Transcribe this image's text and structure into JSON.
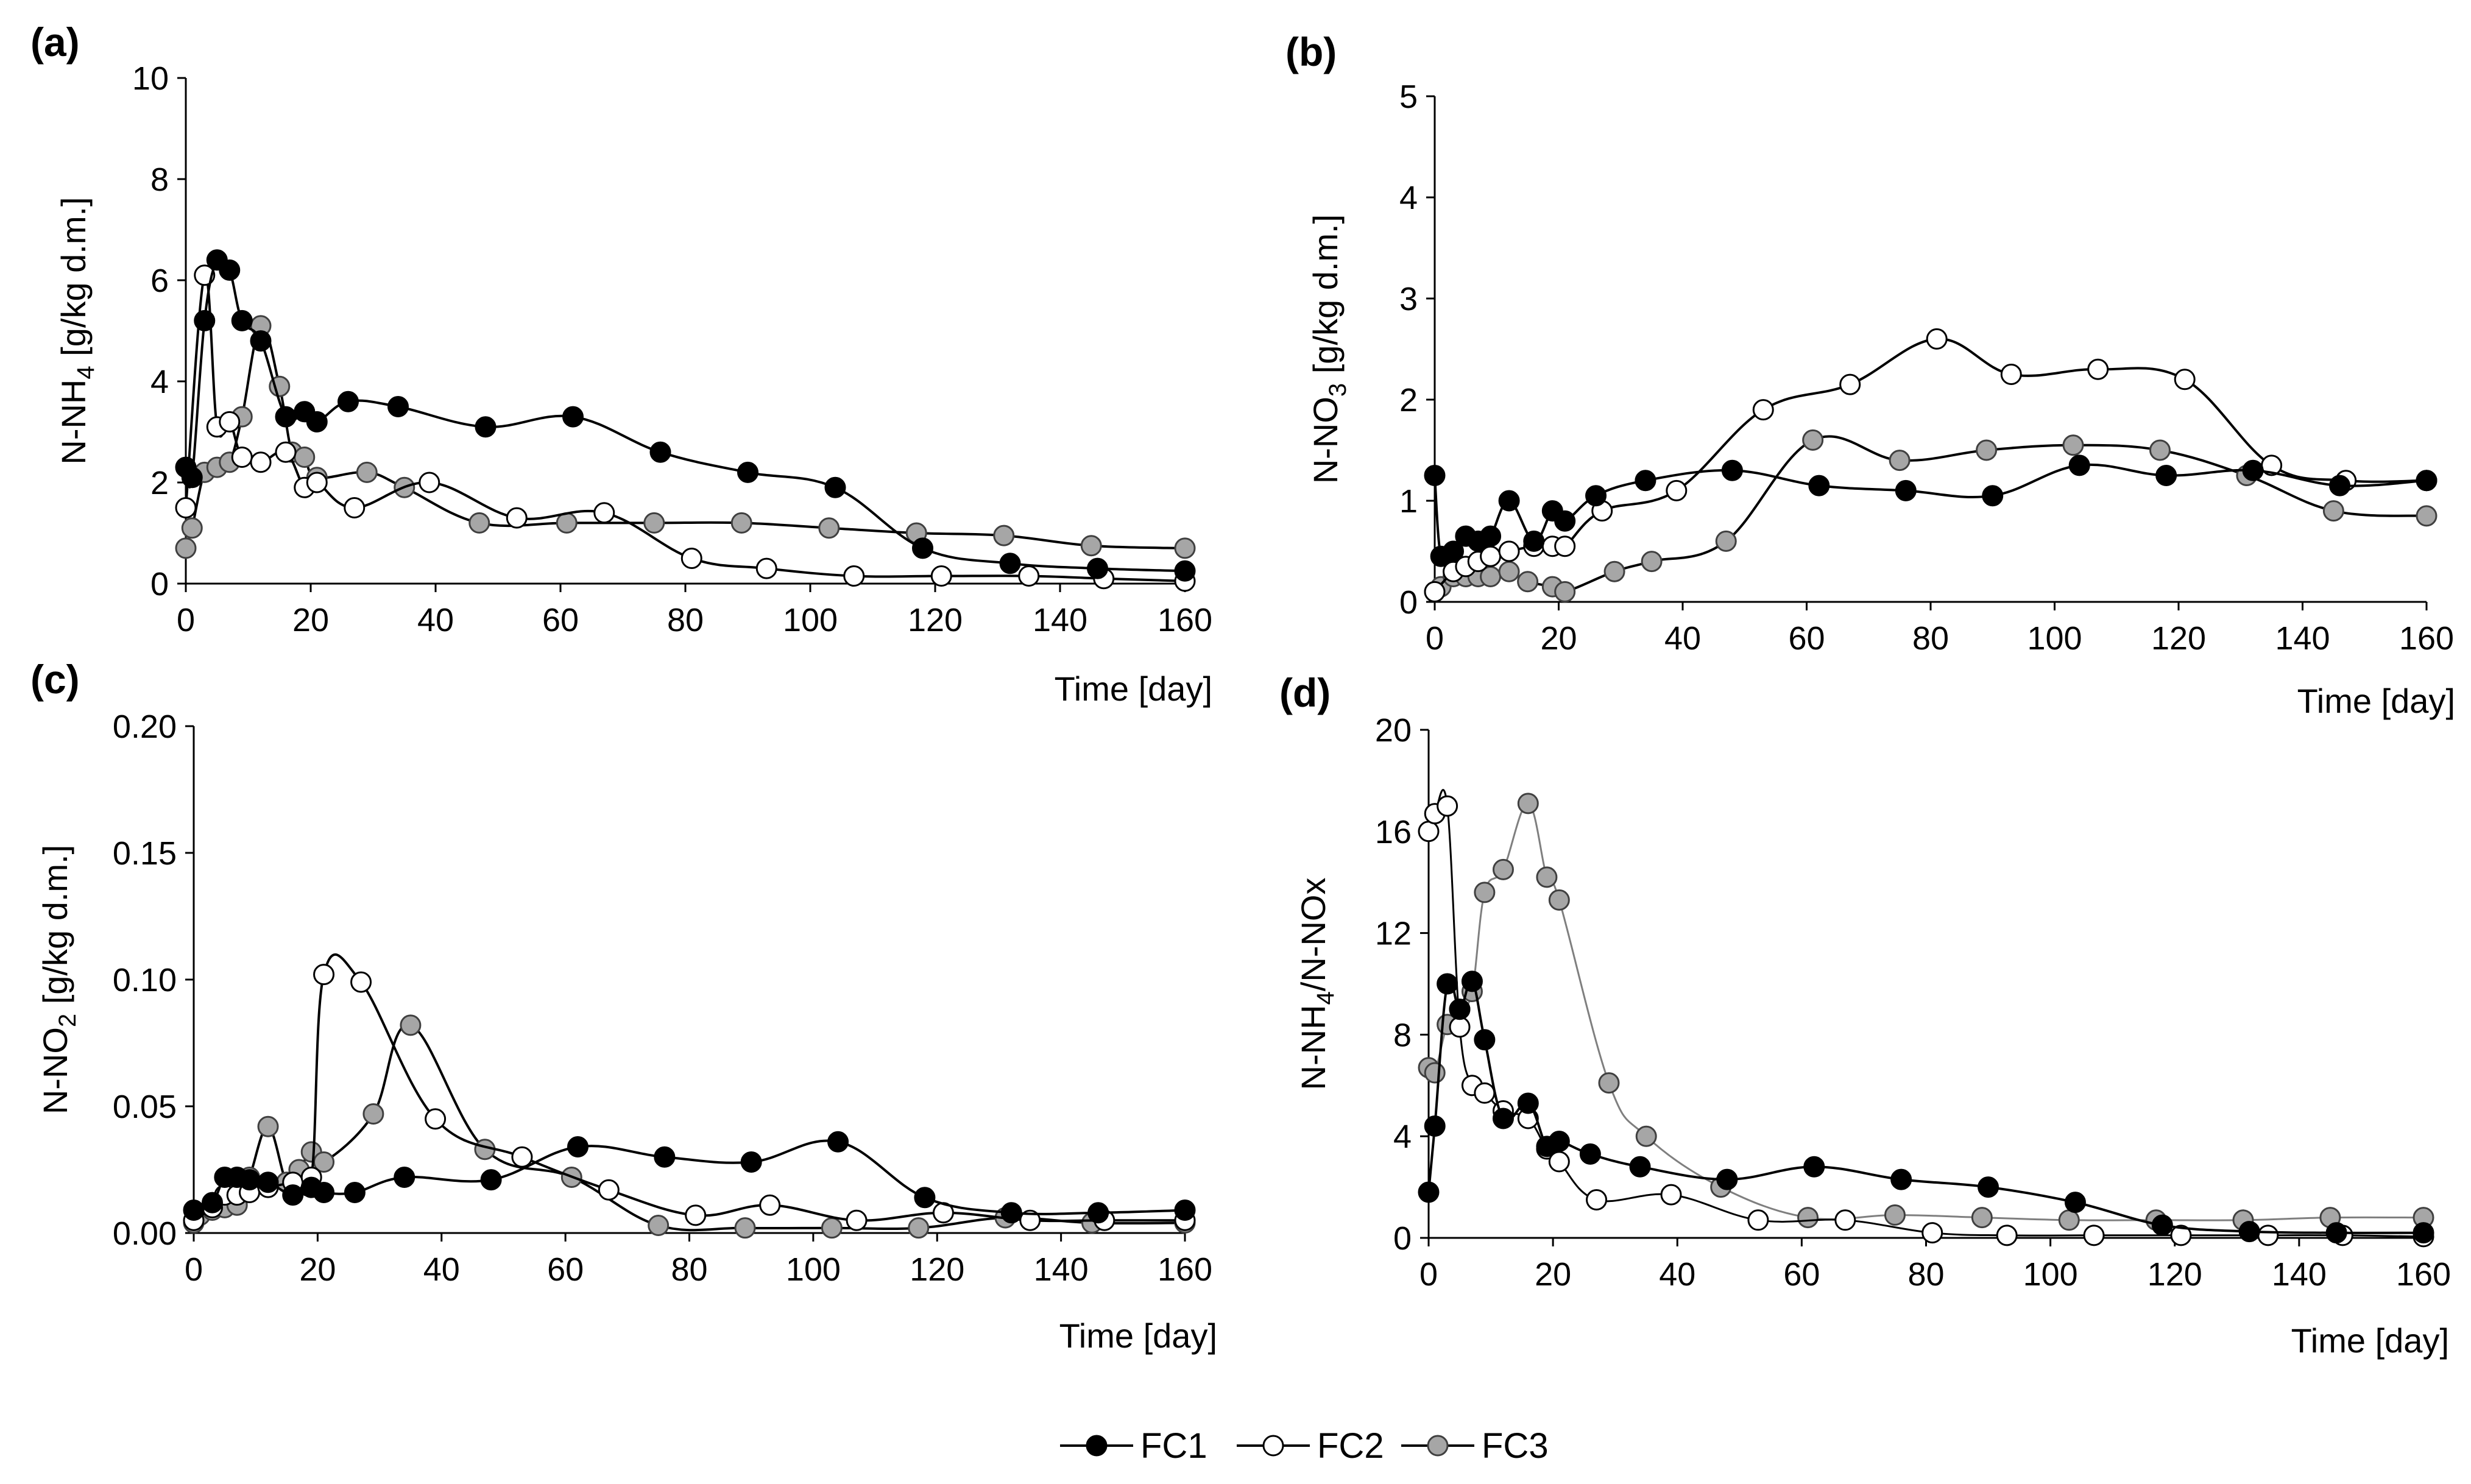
{
  "chart_data": [
    {
      "type": "line",
      "panel_label": "(a)",
      "ylabel_main": "N-NH",
      "ylabel_sub": "4",
      "ylabel_tail": " [g/kg d.m.]",
      "xlabel": "Time [day]",
      "xlim": [
        0,
        160
      ],
      "ylim": [
        0,
        10
      ],
      "x_ticks": [
        "0",
        "20",
        "40",
        "60",
        "80",
        "100",
        "120",
        "140",
        "160"
      ],
      "y_ticks": [
        "0",
        "2",
        "4",
        "6",
        "8",
        "10"
      ],
      "series": [
        {
          "name": "FC1",
          "x": [
            0,
            1,
            3,
            5,
            7,
            9,
            12,
            16,
            19,
            21,
            26,
            34,
            48,
            62,
            76,
            90,
            104,
            118,
            132,
            146,
            160
          ],
          "y": [
            2.3,
            2.1,
            5.2,
            6.4,
            6.2,
            5.2,
            4.8,
            3.3,
            3.4,
            3.2,
            3.6,
            3.5,
            3.1,
            3.3,
            2.6,
            2.2,
            1.9,
            0.7,
            0.4,
            0.3,
            0.25
          ]
        },
        {
          "name": "FC2",
          "x": [
            0,
            3,
            5,
            7,
            9,
            12,
            16,
            19,
            21,
            27,
            39,
            53,
            67,
            81,
            93,
            107,
            121,
            135,
            147,
            160
          ],
          "y": [
            1.5,
            6.1,
            3.1,
            3.2,
            2.5,
            2.4,
            2.6,
            1.9,
            2.0,
            1.5,
            2.0,
            1.3,
            1.4,
            0.5,
            0.3,
            0.15,
            0.15,
            0.15,
            0.1,
            0.05
          ]
        },
        {
          "name": "FC3",
          "x": [
            0,
            1,
            3,
            5,
            7,
            9,
            12,
            15,
            17,
            19,
            21,
            29,
            35,
            47,
            61,
            75,
            89,
            103,
            117,
            131,
            145,
            160
          ],
          "y": [
            0.7,
            1.1,
            2.2,
            2.3,
            2.4,
            3.3,
            5.1,
            3.9,
            2.6,
            2.5,
            2.1,
            2.2,
            1.9,
            1.2,
            1.2,
            1.2,
            1.2,
            1.1,
            1.0,
            0.95,
            0.75,
            0.7
          ]
        }
      ]
    },
    {
      "type": "line",
      "panel_label": "(b)",
      "ylabel_main": "N-NO",
      "ylabel_sub": "3",
      "ylabel_tail": " [g/kg d.m.]",
      "xlabel": "Time [day]",
      "xlim": [
        0,
        160
      ],
      "ylim": [
        0,
        5
      ],
      "x_ticks": [
        "0",
        "20",
        "40",
        "60",
        "80",
        "100",
        "120",
        "140",
        "160"
      ],
      "y_ticks": [
        "0",
        "1",
        "2",
        "3",
        "4",
        "5"
      ],
      "series": [
        {
          "name": "FC1",
          "x": [
            0,
            1,
            3,
            5,
            7,
            9,
            12,
            16,
            19,
            21,
            26,
            34,
            48,
            62,
            76,
            90,
            104,
            118,
            132,
            146,
            160
          ],
          "y": [
            1.25,
            0.45,
            0.5,
            0.65,
            0.6,
            0.65,
            1.0,
            0.6,
            0.9,
            0.8,
            1.05,
            1.2,
            1.3,
            1.15,
            1.1,
            1.05,
            1.35,
            1.25,
            1.3,
            1.15,
            1.2
          ]
        },
        {
          "name": "FC2",
          "x": [
            0,
            3,
            5,
            7,
            9,
            12,
            16,
            19,
            21,
            27,
            39,
            53,
            67,
            81,
            93,
            107,
            121,
            135,
            147,
            160
          ],
          "y": [
            0.1,
            0.3,
            0.35,
            0.4,
            0.45,
            0.5,
            0.55,
            0.55,
            0.55,
            0.9,
            1.1,
            1.9,
            2.15,
            2.6,
            2.25,
            2.3,
            2.2,
            1.35,
            1.2,
            1.2
          ]
        },
        {
          "name": "FC3",
          "x": [
            0,
            1,
            3,
            5,
            7,
            9,
            12,
            15,
            19,
            21,
            29,
            35,
            47,
            61,
            75,
            89,
            103,
            117,
            131,
            145,
            160
          ],
          "y": [
            0.1,
            0.15,
            0.25,
            0.25,
            0.25,
            0.25,
            0.3,
            0.2,
            0.15,
            0.1,
            0.3,
            0.4,
            0.6,
            1.6,
            1.4,
            1.5,
            1.55,
            1.5,
            1.25,
            0.9,
            0.85
          ]
        }
      ]
    },
    {
      "type": "line",
      "panel_label": "(c)",
      "ylabel_main": "N-NO",
      "ylabel_sub": "2",
      "ylabel_tail": " [g/kg d.m.]",
      "xlabel": "Time [day]",
      "xlim": [
        0,
        160
      ],
      "ylim": [
        0,
        0.2
      ],
      "x_ticks": [
        "0",
        "20",
        "40",
        "60",
        "80",
        "100",
        "120",
        "140",
        "160"
      ],
      "y_ticks": [
        "0.00",
        "0.05",
        "0.10",
        "0.15",
        "0.20"
      ],
      "series": [
        {
          "name": "FC1",
          "x": [
            0,
            3,
            5,
            7,
            9,
            12,
            16,
            19,
            21,
            26,
            34,
            48,
            62,
            76,
            90,
            104,
            118,
            132,
            146,
            160
          ],
          "y": [
            0.009,
            0.012,
            0.022,
            0.022,
            0.021,
            0.02,
            0.015,
            0.018,
            0.016,
            0.016,
            0.022,
            0.021,
            0.034,
            0.03,
            0.028,
            0.036,
            0.014,
            0.008,
            0.008,
            0.009
          ]
        },
        {
          "name": "FC2",
          "x": [
            0,
            3,
            5,
            7,
            9,
            12,
            16,
            19,
            21,
            27,
            39,
            53,
            67,
            81,
            93,
            107,
            121,
            135,
            147,
            160
          ],
          "y": [
            0.005,
            0.01,
            0.015,
            0.015,
            0.016,
            0.018,
            0.02,
            0.022,
            0.102,
            0.099,
            0.045,
            0.03,
            0.017,
            0.007,
            0.011,
            0.005,
            0.008,
            0.005,
            0.005,
            0.005
          ]
        },
        {
          "name": "FC3",
          "x": [
            0,
            1,
            3,
            5,
            7,
            9,
            12,
            15,
            17,
            19,
            21,
            29,
            35,
            47,
            61,
            75,
            89,
            103,
            117,
            131,
            145,
            160
          ],
          "y": [
            0.004,
            0.007,
            0.009,
            0.01,
            0.011,
            0.022,
            0.042,
            0.02,
            0.025,
            0.032,
            0.028,
            0.047,
            0.082,
            0.033,
            0.022,
            0.003,
            0.002,
            0.002,
            0.002,
            0.006,
            0.004,
            0.004
          ]
        }
      ]
    },
    {
      "type": "line",
      "panel_label": "(d)",
      "ylabel_main": "N-NH",
      "ylabel_sub": "4",
      "ylabel_tail": "/N-NOx",
      "xlabel": "Time [day]",
      "xlim": [
        0,
        160
      ],
      "ylim": [
        0,
        20
      ],
      "x_ticks": [
        "0",
        "20",
        "40",
        "60",
        "80",
        "100",
        "120",
        "140",
        "160"
      ],
      "y_ticks": [
        "0",
        "4",
        "8",
        "12",
        "16",
        "20"
      ],
      "series": [
        {
          "name": "FC1",
          "x": [
            0,
            1,
            3,
            5,
            7,
            9,
            12,
            16,
            19,
            21,
            26,
            34,
            48,
            62,
            76,
            90,
            104,
            118,
            132,
            146,
            160
          ],
          "y": [
            1.8,
            4.4,
            10.0,
            9.0,
            10.1,
            7.8,
            4.7,
            5.3,
            3.6,
            3.8,
            3.3,
            2.8,
            2.3,
            2.8,
            2.3,
            2.0,
            1.4,
            0.5,
            0.25,
            0.2,
            0.2
          ]
        },
        {
          "name": "FC2",
          "x": [
            0,
            1,
            3,
            5,
            7,
            9,
            12,
            16,
            19,
            21,
            27,
            39,
            53,
            67,
            81,
            93,
            107,
            121,
            135,
            147,
            160
          ],
          "y": [
            16.0,
            16.7,
            17.0,
            8.3,
            6.0,
            5.7,
            5.0,
            4.7,
            3.5,
            3.0,
            1.5,
            1.7,
            0.7,
            0.7,
            0.2,
            0.1,
            0.1,
            0.1,
            0.1,
            0.1,
            0.05
          ]
        },
        {
          "name": "FC3",
          "x": [
            0,
            1,
            3,
            5,
            7,
            9,
            12,
            16,
            19,
            21,
            29,
            35,
            47,
            61,
            75,
            89,
            103,
            117,
            131,
            145,
            160
          ],
          "y": [
            6.7,
            6.5,
            8.4,
            9.0,
            9.7,
            13.6,
            14.5,
            17.1,
            14.2,
            13.3,
            6.1,
            4.0,
            2.0,
            0.8,
            0.9,
            0.8,
            0.7,
            0.7,
            0.7,
            0.8,
            0.8
          ]
        }
      ]
    }
  ],
  "legend": [
    {
      "name": "FC1",
      "fill": "#000000"
    },
    {
      "name": "FC2",
      "fill": "#ffffff"
    },
    {
      "name": "FC3",
      "fill": "#a6a6a6"
    }
  ],
  "colors": {
    "axis": "#000000",
    "line": "#000000",
    "fc3_line": "#7f7f7f"
  }
}
